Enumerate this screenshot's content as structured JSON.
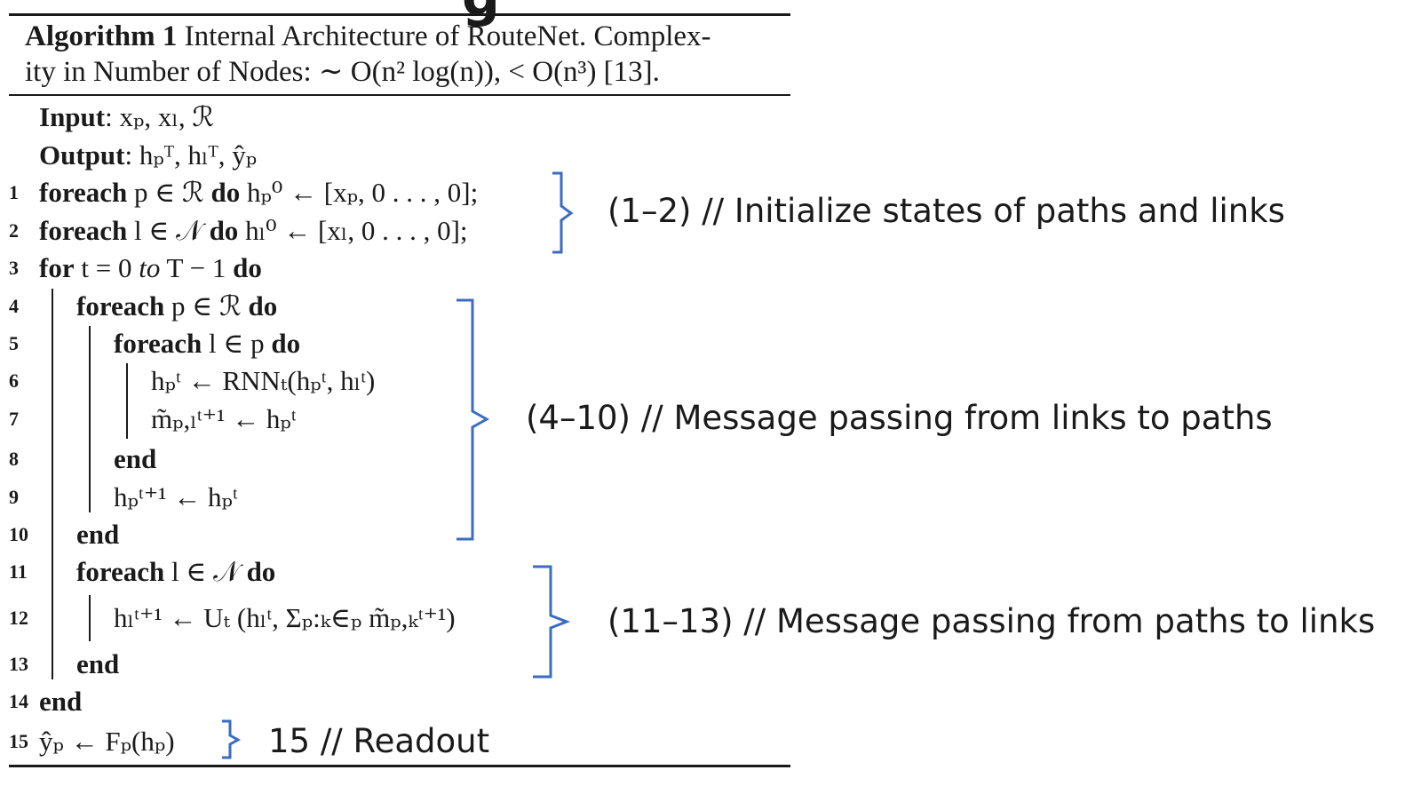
{
  "caption": {
    "label": "Algorithm 1",
    "line1": "Internal Architecture of RouteNet. Complex-",
    "line2": "ity in Number of Nodes: ∼ O(n² log(n)), < O(n³) [13]."
  },
  "io": {
    "input_label": "Input",
    "input_value": ": xₚ, xₗ, ℛ",
    "output_label": "Output",
    "output_value": ": hₚᵀ, hₗᵀ, ŷₚ"
  },
  "lines": [
    {
      "n": "1",
      "text": "foreach p ∈ ℛ do hₚ⁰ ← [xₚ, 0 . . . , 0];"
    },
    {
      "n": "2",
      "text": "foreach l ∈ 𝒩 do hₗ⁰ ← [xₗ, 0 . . . , 0];"
    },
    {
      "n": "3",
      "text": "for t = 0 to T − 1 do"
    },
    {
      "n": "4",
      "text": "foreach p ∈ ℛ do"
    },
    {
      "n": "5",
      "text": "foreach l ∈ p do"
    },
    {
      "n": "6",
      "text": "hₚᵗ ← RNNₜ(hₚᵗ, hₗᵗ)"
    },
    {
      "n": "7",
      "text": "m̃ₚ,ₗᵗ⁺¹ ← hₚᵗ"
    },
    {
      "n": "8",
      "text": "end"
    },
    {
      "n": "9",
      "text": "hₚᵗ⁺¹ ← hₚᵗ"
    },
    {
      "n": "10",
      "text": "end"
    },
    {
      "n": "11",
      "text": "foreach l ∈ 𝒩 do"
    },
    {
      "n": "12",
      "text": "hₗᵗ⁺¹ ← Uₜ (hₗᵗ, Σₚ:ₖ∈ₚ m̃ₚ,ₖᵗ⁺¹)"
    },
    {
      "n": "13",
      "text": "end"
    },
    {
      "n": "14",
      "text": "end"
    },
    {
      "n": "15",
      "text": "ŷₚ ← Fₚ(hₚ)"
    }
  ],
  "annotations": {
    "a1": "(1–2) // Initialize states of paths and links",
    "a2": "(4–10) // Message passing from links to paths",
    "a3": "(11–13) // Message passing from paths to links",
    "a4": "15 // Readout"
  },
  "colors": {
    "bracket": "#3a6cc0",
    "text": "#1a1a1a"
  }
}
